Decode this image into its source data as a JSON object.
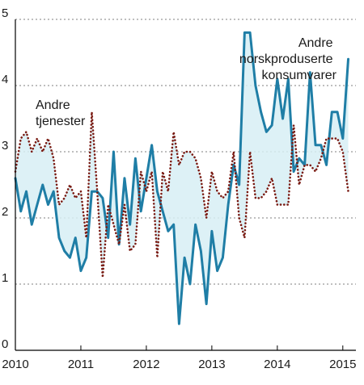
{
  "chart_data": {
    "type": "line",
    "title": "",
    "xlabel": "",
    "ylabel": "",
    "xlim": [
      2010.0,
      2015.2
    ],
    "ylim": [
      0,
      5
    ],
    "grid": true,
    "x_ticks": [
      "2010",
      "2011",
      "2012",
      "2013",
      "2014",
      "2015"
    ],
    "y_ticks": [
      "0",
      "1",
      "2",
      "3",
      "4",
      "5"
    ],
    "series_labels": {
      "line1": [
        "Andre",
        "tjenester"
      ],
      "line2": [
        "Andre",
        "norskproduserte",
        "konsumvarer"
      ]
    },
    "series": [
      {
        "color": "#1f7ea6",
        "style": "solid",
        "x": [
          2010.0,
          2010.083,
          2010.167,
          2010.25,
          2010.333,
          2010.417,
          2010.5,
          2010.583,
          2010.667,
          2010.75,
          2010.833,
          2010.917,
          2011.0,
          2011.083,
          2011.167,
          2011.25,
          2011.333,
          2011.417,
          2011.5,
          2011.583,
          2011.667,
          2011.75,
          2011.833,
          2011.917,
          2012.0,
          2012.083,
          2012.167,
          2012.25,
          2012.333,
          2012.417,
          2012.5,
          2012.583,
          2012.667,
          2012.75,
          2012.833,
          2012.917,
          2013.0,
          2013.083,
          2013.167,
          2013.25,
          2013.333,
          2013.417,
          2013.5,
          2013.583,
          2013.667,
          2013.75,
          2013.833,
          2013.917,
          2014.0,
          2014.083,
          2014.167,
          2014.25,
          2014.333,
          2014.417,
          2014.5,
          2014.583,
          2014.667,
          2014.75,
          2014.833,
          2014.917,
          2015.0,
          2015.083
        ],
        "y": [
          2.6,
          2.1,
          2.4,
          1.9,
          2.2,
          2.5,
          2.2,
          2.4,
          1.7,
          1.5,
          1.4,
          1.7,
          1.2,
          1.4,
          2.4,
          2.4,
          2.3,
          1.7,
          3.0,
          1.6,
          2.6,
          1.9,
          2.9,
          2.1,
          2.6,
          3.1,
          2.4,
          2.1,
          1.8,
          1.9,
          0.4,
          1.4,
          1.0,
          1.9,
          1.5,
          0.7,
          1.8,
          1.2,
          1.4,
          2.2,
          2.8,
          2.5,
          4.8,
          4.8,
          4.0,
          3.6,
          3.3,
          3.4,
          4.1,
          3.5,
          4.1,
          2.7,
          2.9,
          2.8,
          4.2,
          3.1,
          3.1,
          2.8,
          3.6,
          3.6,
          3.2,
          4.4
        ]
      },
      {
        "color": "#7a1a12",
        "style": "dotted",
        "x": [
          2010.0,
          2010.083,
          2010.167,
          2010.25,
          2010.333,
          2010.417,
          2010.5,
          2010.583,
          2010.667,
          2010.75,
          2010.833,
          2010.917,
          2011.0,
          2011.083,
          2011.167,
          2011.25,
          2011.333,
          2011.417,
          2011.5,
          2011.583,
          2011.667,
          2011.75,
          2011.833,
          2011.917,
          2012.0,
          2012.083,
          2012.167,
          2012.25,
          2012.333,
          2012.417,
          2012.5,
          2012.583,
          2012.667,
          2012.75,
          2012.833,
          2012.917,
          2013.0,
          2013.083,
          2013.167,
          2013.25,
          2013.333,
          2013.417,
          2013.5,
          2013.583,
          2013.667,
          2013.75,
          2013.833,
          2013.917,
          2014.0,
          2014.083,
          2014.167,
          2014.25,
          2014.333,
          2014.417,
          2014.5,
          2014.583,
          2014.667,
          2014.75,
          2014.833,
          2014.917,
          2015.0,
          2015.083
        ],
        "y": [
          2.7,
          3.2,
          3.3,
          3.0,
          3.2,
          3.0,
          3.2,
          2.9,
          2.2,
          2.3,
          2.5,
          2.3,
          2.4,
          1.7,
          3.6,
          2.4,
          1.1,
          2.2,
          1.9,
          1.6,
          2.2,
          1.5,
          1.6,
          2.7,
          2.4,
          2.7,
          1.4,
          2.7,
          2.4,
          3.3,
          2.8,
          3.0,
          3.0,
          2.9,
          2.6,
          2.0,
          2.7,
          2.4,
          2.3,
          2.4,
          3.0,
          2.0,
          1.7,
          3.0,
          2.3,
          2.3,
          2.4,
          2.6,
          2.2,
          2.2,
          2.2,
          3.4,
          2.5,
          2.8,
          2.8,
          2.7,
          2.9,
          3.2,
          3.2,
          3.2,
          3.0,
          2.4
        ]
      }
    ]
  }
}
